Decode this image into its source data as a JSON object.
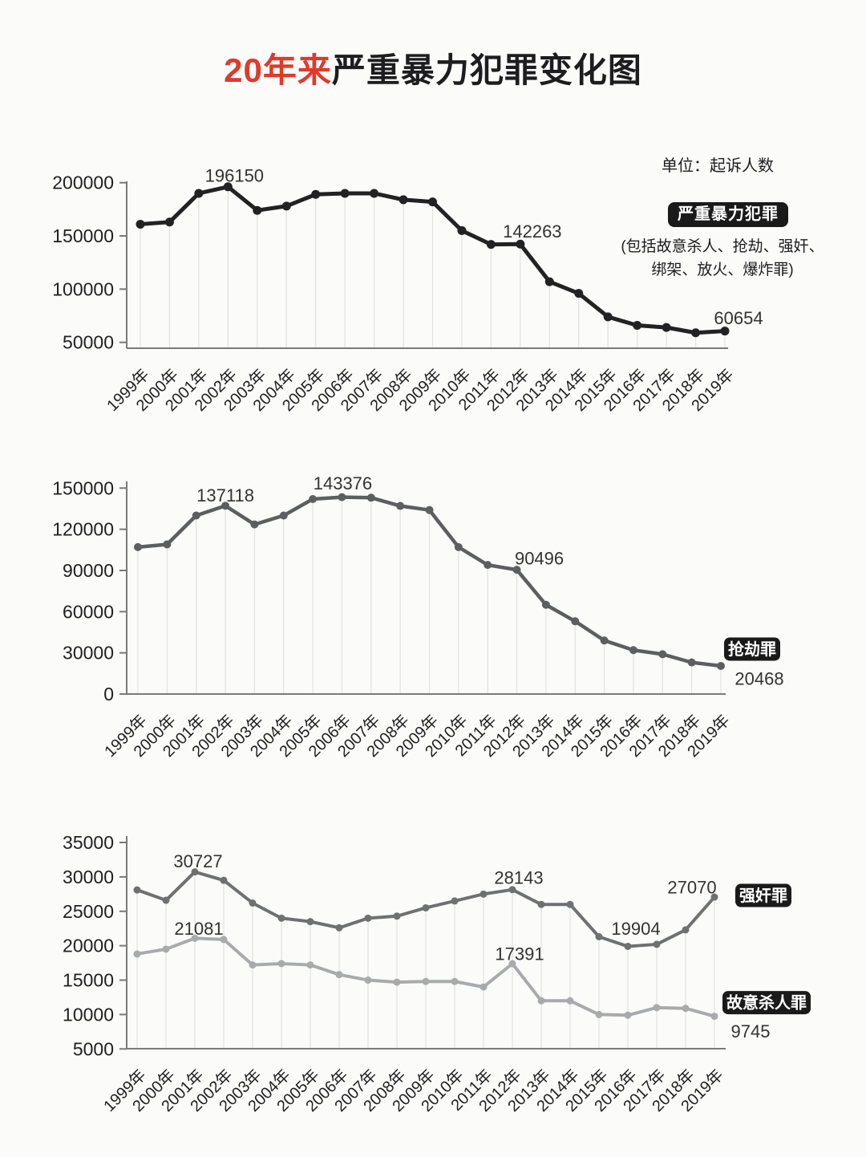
{
  "title": {
    "highlight": "20年来",
    "rest": "严重暴力犯罪变化图",
    "highlight_color": "#e03a2a"
  },
  "unit_note": "单位：起诉人数",
  "colors": {
    "badge_bg": "#1a1a1a",
    "badge_text": "#ffffff",
    "axis": "#7a7a7a",
    "tick_text": "#202022",
    "point_label_text": "#333333",
    "drop_line": "#e3e3e1",
    "background": "#fbfbfa"
  },
  "chart_data": [
    {
      "id": "serious-violent-crime",
      "type": "line",
      "legend_badge": "严重暴力犯罪",
      "legend_note_line1": "(包括故意杀人、抢劫、强奸、",
      "legend_note_line2": "绑架、放火、爆炸罪)",
      "categories": [
        "1999年",
        "2000年",
        "2001年",
        "2002年",
        "2003年",
        "2004年",
        "2005年",
        "2006年",
        "2007年",
        "2008年",
        "2009年",
        "2010年",
        "2011年",
        "2012年",
        "2013年",
        "2014年",
        "2015年",
        "2016年",
        "2017年",
        "2018年",
        "2019年"
      ],
      "ylim": [
        50000,
        200000
      ],
      "yticks": [
        200000,
        150000,
        100000,
        50000
      ],
      "grid": "vertical-drop-lines",
      "legend_position": "right",
      "series": [
        {
          "name": "严重暴力犯罪",
          "color": "#222224",
          "values": [
            161000,
            163000,
            190000,
            196150,
            174000,
            178000,
            189000,
            190000,
            190000,
            184000,
            182000,
            155000,
            142000,
            142263,
            107000,
            96000,
            74000,
            66000,
            64000,
            59000,
            60654
          ],
          "point_labels": [
            {
              "index": 3,
              "text": "196150",
              "dx": 8,
              "dy": -14
            },
            {
              "index": 13,
              "text": "142263",
              "dx": 15,
              "dy": -16
            },
            {
              "index": 20,
              "text": "60654",
              "dx": 17,
              "dy": -16
            }
          ]
        }
      ]
    },
    {
      "id": "robbery",
      "type": "line",
      "categories": [
        "1999年",
        "2000年",
        "2001年",
        "2002年",
        "2003年",
        "2004年",
        "2005年",
        "2006年",
        "2007年",
        "2008年",
        "2009年",
        "2010年",
        "2011年",
        "2012年",
        "2013年",
        "2014年",
        "2015年",
        "2016年",
        "2017年",
        "2018年",
        "2019年"
      ],
      "ylim": [
        0,
        150000
      ],
      "yticks": [
        150000,
        120000,
        90000,
        60000,
        30000,
        0
      ],
      "grid": "vertical-drop-lines",
      "series": [
        {
          "name": "抢劫罪",
          "color": "#5d5e60",
          "values": [
            107000,
            109000,
            130000,
            137118,
            123500,
            130000,
            142000,
            143376,
            143000,
            137000,
            134000,
            107000,
            94000,
            90496,
            65000,
            53000,
            39000,
            32000,
            29000,
            23000,
            20468
          ],
          "badge": {
            "text": "抢劫罪",
            "dx": 39,
            "dy": -21
          },
          "point_labels": [
            {
              "index": 3,
              "text": "137118",
              "dx": 0,
              "dy": -13
            },
            {
              "index": 7,
              "text": "143376",
              "dx": 1,
              "dy": -17
            },
            {
              "index": 13,
              "text": "90496",
              "dx": 28,
              "dy": -14
            },
            {
              "index": 20,
              "text": "20468",
              "dx": 48,
              "dy": 16
            }
          ]
        }
      ]
    },
    {
      "id": "rape-and-homicide",
      "type": "line",
      "categories": [
        "1999年",
        "2000年",
        "2001年",
        "2002年",
        "2003年",
        "2004年",
        "2005年",
        "2006年",
        "2007年",
        "2008年",
        "2009年",
        "2010年",
        "2011年",
        "2012年",
        "2013年",
        "2014年",
        "2015年",
        "2016年",
        "2017年",
        "2018年",
        "2019年"
      ],
      "ylim": [
        5000,
        35000
      ],
      "yticks": [
        35000,
        30000,
        25000,
        20000,
        15000,
        10000,
        5000
      ],
      "grid": "vertical-drop-lines",
      "series": [
        {
          "name": "强奸罪",
          "color": "#6f7072",
          "values": [
            28100,
            26600,
            30727,
            29500,
            26200,
            24000,
            23500,
            22600,
            24000,
            24300,
            25500,
            26500,
            27500,
            28143,
            26000,
            26000,
            21300,
            19904,
            20200,
            22300,
            27070
          ],
          "badge": {
            "text": "强奸罪",
            "dx": 61,
            "dy": -2
          },
          "point_labels": [
            {
              "index": 2,
              "text": "30727",
              "dx": 4,
              "dy": -13
            },
            {
              "index": 13,
              "text": "28143",
              "dx": 8,
              "dy": -15
            },
            {
              "index": 17,
              "text": "19904",
              "dx": 10,
              "dy": -22
            },
            {
              "index": 20,
              "text": "27070",
              "dx": -28,
              "dy": -12
            }
          ]
        },
        {
          "name": "故意杀人罪",
          "color": "#a8aaac",
          "values": [
            18800,
            19500,
            21081,
            20900,
            17200,
            17400,
            17200,
            15800,
            15000,
            14700,
            14800,
            14800,
            14000,
            17391,
            12000,
            12000,
            10000,
            9900,
            11000,
            10900,
            9745
          ],
          "badge": {
            "text": "故意杀人罪",
            "dx": 65,
            "dy": -17
          },
          "point_labels": [
            {
              "index": 2,
              "text": "21081",
              "dx": 5,
              "dy": -12
            },
            {
              "index": 13,
              "text": "17391",
              "dx": 9,
              "dy": -12
            },
            {
              "index": 20,
              "text": "9745",
              "dx": 45,
              "dy": 19
            }
          ]
        }
      ]
    }
  ]
}
